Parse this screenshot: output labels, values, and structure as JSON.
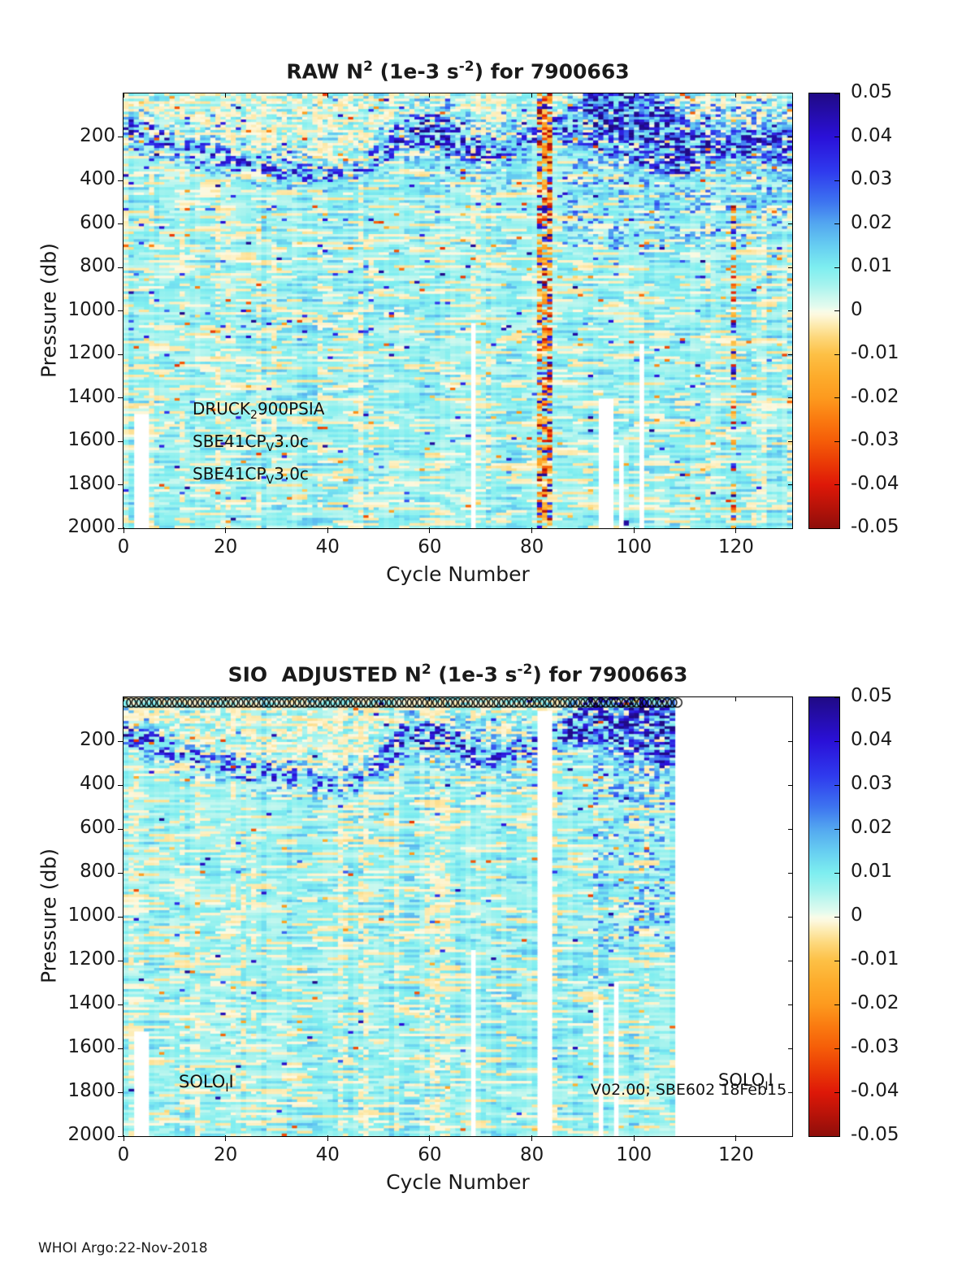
{
  "figure": {
    "footer": "WHOI Argo:22-Nov-2018",
    "colors": {
      "text": "#1a1a1a",
      "axis": "#000000",
      "background": "#ffffff"
    }
  },
  "colormap": {
    "vmin": -0.05,
    "vmax": 0.05,
    "stops": [
      [
        0.05,
        "#200a85"
      ],
      [
        0.04,
        "#2a10d8"
      ],
      [
        0.032,
        "#2f3bee"
      ],
      [
        0.025,
        "#3d74f0"
      ],
      [
        0.02,
        "#53a7f0"
      ],
      [
        0.015,
        "#66cdf1"
      ],
      [
        0.01,
        "#7deef0"
      ],
      [
        0.006,
        "#a5f3ee"
      ],
      [
        0.003,
        "#ccf8ee"
      ],
      [
        0.001,
        "#e4fbee"
      ],
      [
        0.0,
        "#f7fce9"
      ],
      [
        -0.001,
        "#fdf8dd"
      ],
      [
        -0.003,
        "#fdecb4"
      ],
      [
        -0.006,
        "#fdd87c"
      ],
      [
        -0.01,
        "#fdc045"
      ],
      [
        -0.015,
        "#fdac2c"
      ],
      [
        -0.02,
        "#fd9a1e"
      ],
      [
        -0.025,
        "#fa7a10"
      ],
      [
        -0.03,
        "#f55c08"
      ],
      [
        -0.035,
        "#ea3a06"
      ],
      [
        -0.04,
        "#de1808"
      ],
      [
        -0.045,
        "#b81309"
      ],
      [
        -0.05,
        "#8e0e0a"
      ]
    ]
  },
  "chart_data": [
    {
      "type": "heatmap",
      "title": "RAW N2 (1e-3 s-2) for 7900663",
      "title_parts": {
        "t1": "RAW N",
        "sup1": "2",
        "t2": " (1e-3 s",
        "sup2": "-2",
        "t3": ") for 7900663"
      },
      "xlabel": "Cycle Number",
      "ylabel": "Pressure (db)",
      "xlim": [
        0,
        131
      ],
      "ylim": [
        0,
        2000
      ],
      "y_axis_reversed": true,
      "x_ticks": [
        0,
        20,
        40,
        60,
        80,
        100,
        120
      ],
      "y_ticks": [
        200,
        400,
        600,
        800,
        1000,
        1200,
        1400,
        1600,
        1800,
        2000
      ],
      "colorbar_ticks": [
        "0.05",
        "0.04",
        "0.03",
        "0.02",
        "0.01",
        "0",
        "-0.01",
        "-0.02",
        "-0.03",
        "-0.04",
        "-0.05"
      ],
      "value_range": [
        -0.05,
        0.05
      ],
      "annotations": {
        "line1": {
          "a": "DRUCK",
          "sub": "2",
          "b": "900PSIA"
        },
        "line2": {
          "a": "SBE41CP",
          "sub": "V",
          "b": "3.0c"
        },
        "line3": {
          "a": "SBE41CP",
          "sub": "V",
          "b": "3.0c"
        }
      },
      "render": {
        "seed": 7,
        "n_cycles": 131,
        "data_end": 131,
        "row_db": 12,
        "pycnocline": [
          [
            0,
            150,
            55,
            0.8
          ],
          [
            6,
            200,
            50,
            0.65
          ],
          [
            14,
            270,
            45,
            0.6
          ],
          [
            24,
            320,
            50,
            0.6
          ],
          [
            34,
            360,
            45,
            0.55
          ],
          [
            43,
            385,
            40,
            0.5
          ],
          [
            49,
            310,
            55,
            0.55
          ],
          [
            55,
            175,
            75,
            0.85
          ],
          [
            62,
            185,
            85,
            0.9
          ],
          [
            68,
            245,
            75,
            0.7
          ],
          [
            74,
            275,
            55,
            0.6
          ],
          [
            80,
            205,
            55,
            0.65
          ],
          [
            86,
            160,
            65,
            0.85
          ],
          [
            92,
            110,
            140,
            0.95
          ],
          [
            98,
            140,
            190,
            1
          ],
          [
            104,
            175,
            195,
            1
          ],
          [
            110,
            250,
            130,
            0.9
          ],
          [
            116,
            225,
            75,
            0.85
          ],
          [
            124,
            235,
            70,
            0.85
          ],
          [
            131,
            245,
            80,
            0.9
          ]
        ],
        "blue_wash": [
          {
            "c0": 86,
            "c1": 131,
            "db0": 30,
            "db1": 720,
            "p": 0.22,
            "v": [
              0.012,
              0.03
            ]
          },
          {
            "c0": 55,
            "c1": 80,
            "db0": 120,
            "db1": 460,
            "p": 0.13,
            "v": [
              0.01,
              0.022
            ]
          },
          {
            "c0": 42,
            "c1": 54,
            "db0": 150,
            "db1": 400,
            "p": 0.08,
            "v": [
              0.01,
              0.018
            ]
          }
        ],
        "stripes": [
          {
            "c0": 81,
            "c1": 83.6,
            "db0": 0,
            "db1": 2000,
            "density": 0.8,
            "red": 0.28,
            "orange": 0.32,
            "navy": 0.18
          },
          {
            "c0": 118.7,
            "c1": 120.3,
            "db0": 520,
            "db1": 2000,
            "density": 0.6,
            "red": 0.33,
            "orange": 0.25,
            "navy": 0.26
          }
        ],
        "gaps": [
          {
            "c0": 1.6,
            "c1": 4.6,
            "db0": 1480
          },
          {
            "c0": 67.8,
            "c1": 69.1,
            "db0": 1060
          },
          {
            "c0": 92.6,
            "c1": 96.1,
            "db0": 1400
          },
          {
            "c0": 96.6,
            "c1": 97.7,
            "db0": 1620
          },
          {
            "c0": 100.9,
            "c1": 102.4,
            "db0": 1150
          }
        ],
        "speckle": {
          "navy": 0.012,
          "orange": 0.01
        },
        "circles": null
      }
    },
    {
      "type": "heatmap",
      "title": "SIO  ADJUSTED N2 (1e-3 s-2) for 7900663",
      "title_parts": {
        "t1": "SIO  ADJUSTED N",
        "sup1": "2",
        "t2": " (1e-3 s",
        "sup2": "-2",
        "t3": ") for 7900663"
      },
      "xlabel": "Cycle Number",
      "ylabel": "Pressure (db)",
      "xlim": [
        0,
        131
      ],
      "ylim": [
        0,
        2000
      ],
      "y_axis_reversed": true,
      "x_ticks": [
        0,
        20,
        40,
        60,
        80,
        100,
        120
      ],
      "y_ticks": [
        200,
        400,
        600,
        800,
        1000,
        1200,
        1400,
        1600,
        1800,
        2000
      ],
      "colorbar_ticks": [
        "0.05",
        "0.04",
        "0.03",
        "0.02",
        "0.01",
        "0",
        "-0.01",
        "-0.02",
        "-0.03",
        "-0.04",
        "-0.05"
      ],
      "value_range": [
        -0.05,
        0.05
      ],
      "annotations": {
        "solo_left": {
          "a": "SOLO",
          "sub": "I",
          "b": "I"
        },
        "version": "V02.00; SBE602 18Feb15",
        "solo_right": {
          "a": "SOLO",
          "sub": "I",
          "b": "I"
        }
      },
      "render": {
        "seed": 13,
        "n_cycles": 131,
        "data_end": 108.3,
        "row_db": 12,
        "pycnocline": [
          [
            0,
            155,
            55,
            0.75
          ],
          [
            6,
            210,
            50,
            0.6
          ],
          [
            14,
            280,
            45,
            0.55
          ],
          [
            24,
            330,
            48,
            0.55
          ],
          [
            34,
            375,
            45,
            0.5
          ],
          [
            43,
            400,
            40,
            0.45
          ],
          [
            49,
            320,
            50,
            0.5
          ],
          [
            55,
            180,
            70,
            0.8
          ],
          [
            62,
            195,
            80,
            0.85
          ],
          [
            68,
            250,
            70,
            0.65
          ],
          [
            74,
            285,
            50,
            0.55
          ],
          [
            80,
            215,
            50,
            0.6
          ],
          [
            86,
            170,
            60,
            0.75
          ],
          [
            93,
            95,
            120,
            0.95
          ],
          [
            99,
            125,
            170,
            1
          ],
          [
            104,
            160,
            160,
            1
          ],
          [
            108.3,
            185,
            150,
            1
          ]
        ],
        "blue_wash": [
          {
            "c0": 92,
            "c1": 108.3,
            "db0": 30,
            "db1": 1150,
            "p": 0.17,
            "v": [
              0.012,
              0.03
            ]
          },
          {
            "c0": 55,
            "c1": 80,
            "db0": 80,
            "db1": 420,
            "p": 0.13,
            "v": [
              0.01,
              0.02
            ]
          }
        ],
        "stripes": [],
        "gaps": [
          {
            "c0": 1.6,
            "c1": 5.1,
            "db0": 1520
          },
          {
            "c0": 68.3,
            "c1": 69.4,
            "db0": 1150
          },
          {
            "c0": 80.9,
            "c1": 83.7,
            "db0": 60
          },
          {
            "c0": 92.8,
            "c1": 94.1,
            "db0": 1380
          },
          {
            "c0": 95.6,
            "c1": 96.6,
            "db0": 1300
          },
          {
            "c0": 99.6,
            "c1": 100.4,
            "db0": 1460
          }
        ],
        "speckle": {
          "navy": 0.007,
          "orange": 0.005
        },
        "circles": {
          "from": 0.5,
          "to": 108.5,
          "cy": 6.5,
          "r": 5.6,
          "lw": 1.4
        }
      }
    }
  ]
}
